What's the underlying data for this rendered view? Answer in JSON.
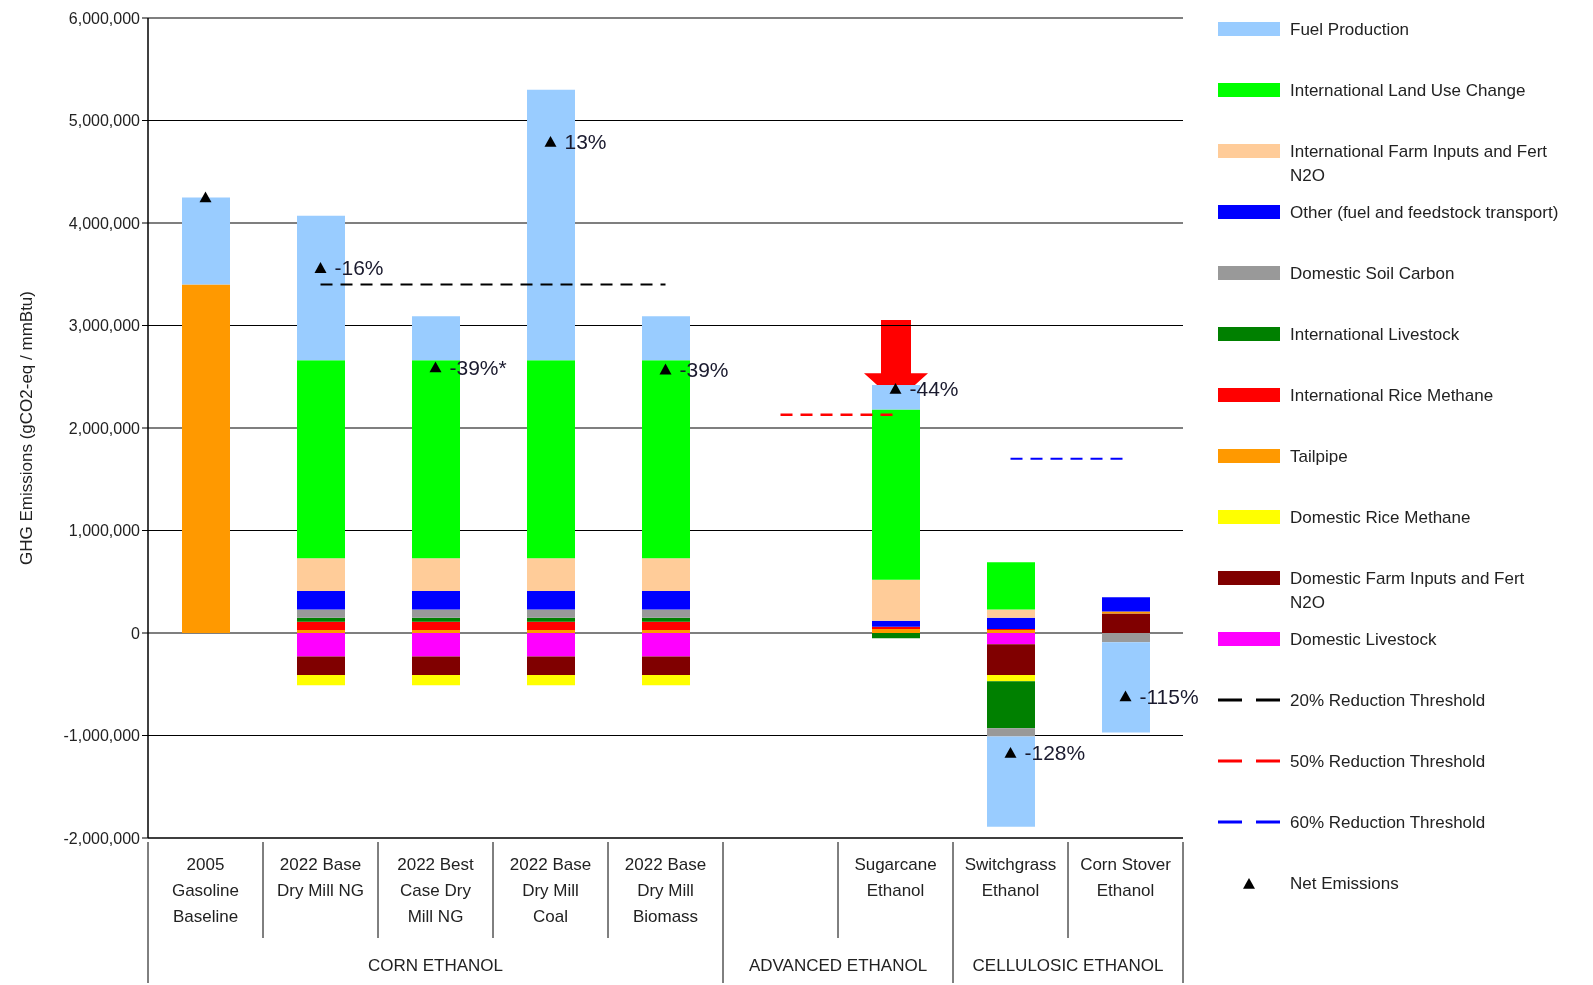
{
  "chart_data": {
    "type": "bar",
    "stacked": true,
    "ylabel": "GHG Emissions (gCO2-eq / mmBtu)",
    "categories": [
      "2005 Gasoline Baseline",
      "2022 Base Dry Mill NG",
      "2022 Best Case Dry Mill NG",
      "2022 Base Dry Mill Coal",
      "2022 Base Dry Mill Biomass",
      null,
      "Sugarcane Ethanol",
      "Switchgrass Ethanol",
      "Corn Stover Ethanol"
    ],
    "annotations": [
      "CORN ETHANOL",
      "ADVANCED ETHANOL",
      "CELLULOSIC ETHANOL",
      {
        "text": "-16%",
        "x": "2022 Base Dry Mill NG",
        "y": 3560000
      },
      {
        "text": "-39%*",
        "x": "2022 Best Case Dry Mill NG",
        "y": 2590000
      },
      {
        "text": "13%",
        "x": "2022 Base Dry Mill Coal",
        "y": 4790000
      },
      {
        "text": "-39%",
        "x": "2022 Base Dry Mill Biomass",
        "y": 2570000
      },
      {
        "text": "-44%",
        "x": "Sugarcane Ethanol",
        "y": 2380000
      },
      {
        "text": "-128%",
        "x": "Switchgrass Ethanol",
        "y": -1170000
      },
      {
        "text": "-115%",
        "x": "Corn Stover Ethanol",
        "y": -620000
      }
    ],
    "ylim": [
      -2000000,
      6000000
    ],
    "yticks": [
      {
        "value": -2000000,
        "label": "-2,000,000"
      },
      {
        "value": -1000000,
        "label": "-1,000,000"
      },
      {
        "value": 0,
        "label": "0"
      },
      {
        "value": 1000000,
        "label": "1,000,000"
      },
      {
        "value": 2000000,
        "label": "2,000,000"
      },
      {
        "value": 3000000,
        "label": "3,000,000"
      },
      {
        "value": 4000000,
        "label": "4,000,000"
      },
      {
        "value": 5000000,
        "label": "5,000,000"
      },
      {
        "value": 6000000,
        "label": "6,000,000"
      }
    ],
    "grid": "y",
    "legend": "right",
    "series": [
      {
        "name": "Domestic Livestock",
        "color": "#ff00ff",
        "values": [
          null,
          -230000,
          -230000,
          -230000,
          -230000,
          null,
          null,
          -110000,
          null
        ]
      },
      {
        "name": "Domestic Farm Inputs and Fert N2O",
        "color": "#800000",
        "values": [
          null,
          -180000,
          -180000,
          -180000,
          -180000,
          null,
          null,
          -300000,
          190000
        ]
      },
      {
        "name": "Domestic Rice Methane",
        "color": "#ffff00",
        "values": [
          null,
          -100000,
          -100000,
          -100000,
          -100000,
          null,
          null,
          -60000,
          null
        ]
      },
      {
        "name": "Tailpipe",
        "color": "#ff9900",
        "values": [
          3400000,
          30000,
          30000,
          30000,
          30000,
          null,
          40000,
          30000,
          20000
        ]
      },
      {
        "name": "International Rice Methane",
        "color": "#ff0000",
        "values": [
          null,
          80000,
          80000,
          80000,
          80000,
          null,
          20000,
          10000,
          null
        ]
      },
      {
        "name": "International Livestock",
        "color": "#008000",
        "values": [
          null,
          40000,
          40000,
          40000,
          40000,
          null,
          -50000,
          -460000,
          null
        ]
      },
      {
        "name": "Domestic Soil Carbon",
        "color": "#999999",
        "values": [
          null,
          80000,
          80000,
          80000,
          80000,
          null,
          null,
          -80000,
          -90000
        ]
      },
      {
        "name": "Other (fuel and feedstock transport)",
        "color": "#0000ff",
        "values": [
          null,
          180000,
          180000,
          180000,
          180000,
          null,
          60000,
          110000,
          140000
        ]
      },
      {
        "name": "International Farm Inputs and Fert N2O",
        "color": "#ffcc99",
        "values": [
          null,
          320000,
          320000,
          320000,
          320000,
          null,
          400000,
          80000,
          null
        ]
      },
      {
        "name": "International Land Use Change",
        "color": "#00ff00",
        "values": [
          null,
          1930000,
          1930000,
          1930000,
          1930000,
          null,
          1660000,
          460000,
          null
        ]
      },
      {
        "name": "Fuel Production",
        "color": "#99ccff",
        "values": [
          850000,
          1410000,
          430000,
          2640000,
          430000,
          null,
          240000,
          -880000,
          -880000
        ]
      },
      {
        "name": "20% Reduction Threshold",
        "type": "line",
        "line_style": "dashed",
        "color": "#000000",
        "values": [
          null,
          3400000,
          3400000,
          3400000,
          3400000,
          null,
          null,
          null,
          null
        ]
      },
      {
        "name": "50% Reduction Threshold",
        "type": "line",
        "line_style": "dashed",
        "color": "#ff0000",
        "values": [
          null,
          null,
          null,
          null,
          null,
          2130000,
          2130000,
          null,
          null
        ]
      },
      {
        "name": "60% Reduction Threshold",
        "type": "line",
        "line_style": "dashed",
        "color": "#0000ff",
        "values": [
          null,
          null,
          null,
          null,
          null,
          null,
          null,
          1700000,
          1700000
        ]
      },
      {
        "name": "Net Emissions",
        "type": "scatter",
        "marker": "triangle",
        "color": "#000000",
        "values": [
          4250000,
          3560000,
          2590000,
          4790000,
          2570000,
          null,
          2380000,
          -1170000,
          -620000
        ]
      }
    ]
  }
}
